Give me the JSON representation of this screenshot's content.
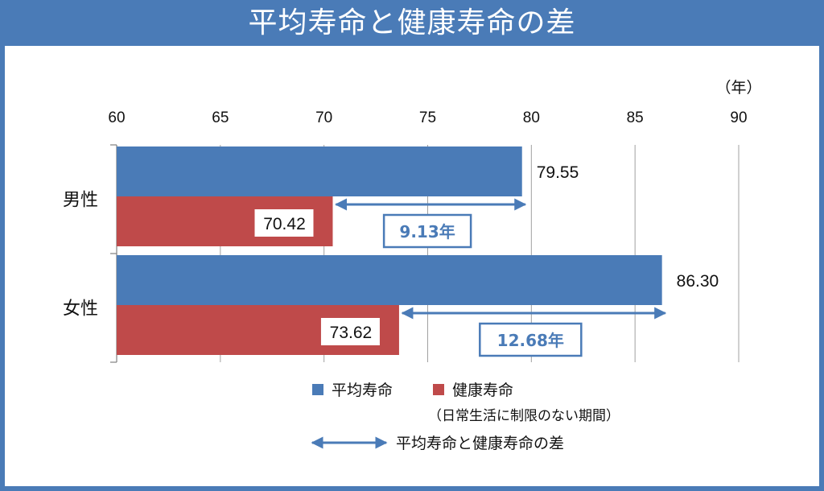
{
  "title": "平均寿命と健康寿命の差",
  "chart_data": {
    "type": "bar",
    "orientation": "horizontal",
    "unit_label": "（年）",
    "xlim": [
      60,
      90
    ],
    "xticks": [
      "60",
      "65",
      "70",
      "75",
      "80",
      "85",
      "90"
    ],
    "grid": true,
    "categories": [
      "男性",
      "女性"
    ],
    "series": [
      {
        "name": "平均寿命",
        "color": "#4a7bb7",
        "values": [
          79.55,
          86.3
        ],
        "labels": [
          "79.55",
          "86.30"
        ]
      },
      {
        "name": "健康寿命",
        "color": "#bf4a4a",
        "values": [
          70.42,
          73.62
        ],
        "labels": [
          "70.42",
          "73.62"
        ]
      }
    ],
    "differences": [
      {
        "category": "男性",
        "value": 9.13,
        "label": "9.13年"
      },
      {
        "category": "女性",
        "value": 12.68,
        "label": "12.68年"
      }
    ],
    "legend": {
      "placement": "bottom",
      "items": [
        "平均寿命",
        "健康寿命"
      ],
      "note": "（日常生活に制限のない期間）",
      "arrow_label": "平均寿命と健康寿命の差"
    },
    "arrow_color": "#4a7bb7"
  }
}
